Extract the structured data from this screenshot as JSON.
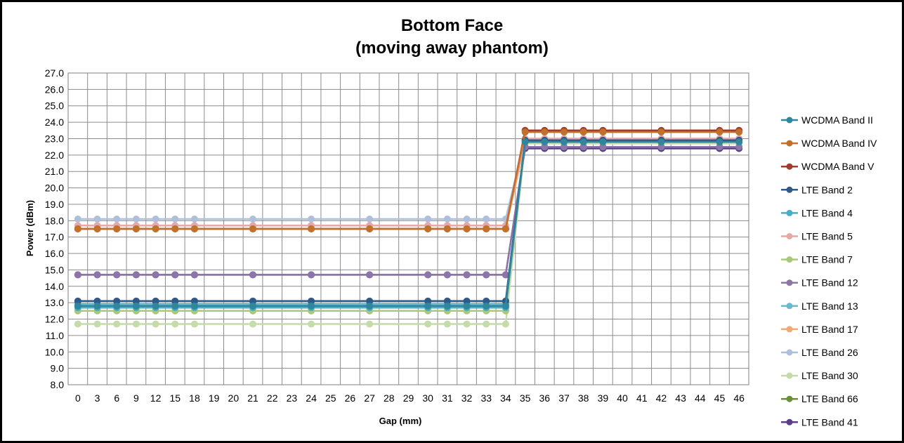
{
  "chart_data": {
    "type": "line",
    "title": "Bottom Face",
    "subtitle": "(moving away phantom)",
    "xlabel": "Gap (mm)",
    "ylabel": "Power (dBm)",
    "categories": [
      "0",
      "3",
      "6",
      "9",
      "12",
      "15",
      "18",
      "19",
      "20",
      "21",
      "22",
      "23",
      "24",
      "25",
      "26",
      "27",
      "28",
      "29",
      "30",
      "31",
      "32",
      "33",
      "34",
      "35",
      "36",
      "37",
      "38",
      "39",
      "40",
      "41",
      "42",
      "43",
      "44",
      "45",
      "46"
    ],
    "marker_categories": [
      "0",
      "3",
      "6",
      "9",
      "12",
      "15",
      "18",
      "21",
      "24",
      "27",
      "30",
      "31",
      "32",
      "33",
      "34",
      "35",
      "36",
      "37",
      "38",
      "39",
      "42",
      "45",
      "46"
    ],
    "ylim": [
      8.0,
      27.0
    ],
    "ytick_step": 1.0,
    "ytick_labels": [
      "8.0",
      "9.0",
      "10.0",
      "11.0",
      "12.0",
      "13.0",
      "14.0",
      "15.0",
      "16.0",
      "17.0",
      "18.0",
      "19.0",
      "20.0",
      "21.0",
      "22.0",
      "23.0",
      "24.0",
      "25.0",
      "26.0",
      "27.0"
    ],
    "grid": true,
    "legend_position": "right",
    "series": [
      {
        "name": "WCDMA Band II",
        "color": "#31859c",
        "before": 12.8,
        "after": 22.8
      },
      {
        "name": "WCDMA Band IV",
        "color": "#c0712b",
        "before": 17.5,
        "after": 23.4
      },
      {
        "name": "WCDMA Band V",
        "color": "#a23a2e",
        "before": 17.5,
        "after": 23.5
      },
      {
        "name": "LTE Band 2",
        "color": "#2e5a8a",
        "before": 13.1,
        "after": 22.9
      },
      {
        "name": "LTE Band 4",
        "color": "#4aacc5",
        "before": 12.7,
        "after": 22.8
      },
      {
        "name": "LTE Band 5",
        "color": "#e6a8a6",
        "before": 17.7,
        "after": 23.0
      },
      {
        "name": "LTE Band 7",
        "color": "#a9c97a",
        "before": 12.5,
        "after": 22.9
      },
      {
        "name": "LTE Band 12",
        "color": "#8c75a8",
        "before": 14.7,
        "after": 22.5
      },
      {
        "name": "LTE Band 13",
        "color": "#6cb8ce",
        "before": 12.9,
        "after": 22.9
      },
      {
        "name": "LTE Band 17",
        "color": "#f3a873",
        "before": 17.5,
        "after": 22.8
      },
      {
        "name": "LTE Band 26",
        "color": "#aebfdc",
        "before": 18.1,
        "after": 23.0
      },
      {
        "name": "LTE Band 30",
        "color": "#c6dbaa",
        "before": 11.7,
        "after": 22.7
      },
      {
        "name": "LTE Band 66",
        "color": "#6b8e3a",
        "before": 12.9,
        "after": 22.9
      },
      {
        "name": "LTE Band 41",
        "color": "#5b3f87",
        "before": 14.7,
        "after": 22.4
      }
    ]
  }
}
